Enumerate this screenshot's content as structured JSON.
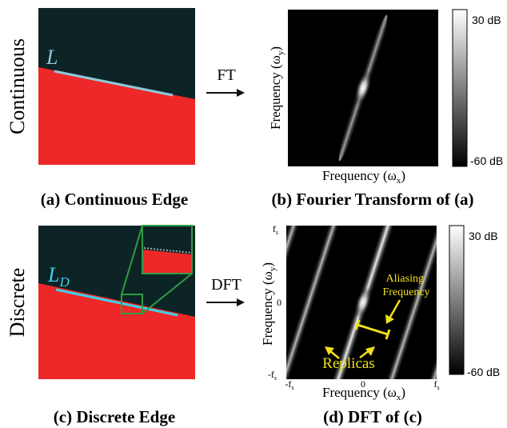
{
  "row1": {
    "side_label": "Continuous",
    "edge_label": "L",
    "arrow_label": "FT",
    "panel_a_caption": "(a) Continuous Edge",
    "panel_b_caption": "(b) Fourier Transform of (a)",
    "ylabel_main": "Frequency (ω",
    "ylabel_sub": "y",
    "xlabel_main": "Frequency (ω",
    "xlabel_sub": "x",
    "close_paren": ")",
    "colorbar_top": "30 dB",
    "colorbar_bottom": "-60 dB"
  },
  "row2": {
    "side_label": "Discrete",
    "edge_label_main": "L",
    "edge_label_sub": "D",
    "arrow_label": "DFT",
    "panel_c_caption": "(c) Discrete Edge",
    "panel_d_caption": "(d) DFT of (c)",
    "ylabel_main": "Frequency (ω",
    "ylabel_sub": "y",
    "xlabel_main": "Frequency (ω",
    "xlabel_sub": "x",
    "close_paren": ")",
    "tick_fs_top": "f",
    "tick_fs_sub": "s",
    "tick_zero_y": "0",
    "tick_neg_fs_left": "-f",
    "tick_neg_fs_left_sub": "s",
    "tick_neg_fs_bottom": "-f",
    "tick_neg_fs_bottom_sub": "s",
    "tick_zero_x": "0",
    "tick_fs_right": "f",
    "tick_fs_right_sub": "s",
    "annotation_aliasing_line1": "Aliasing",
    "annotation_aliasing_line2": "Frequency",
    "annotation_replicas": "Replicas",
    "colorbar_top": "30 dB",
    "colorbar_bottom": "-60 dB"
  },
  "colors": {
    "red_region": "#ee2828",
    "dark_region": "#0d2426",
    "edge_line_continuous": "#8ec9dc",
    "edge_line_discrete": "#3fd0e8",
    "zoom_box": "#2e9d45",
    "annotation_yellow": "#f2e01a"
  }
}
